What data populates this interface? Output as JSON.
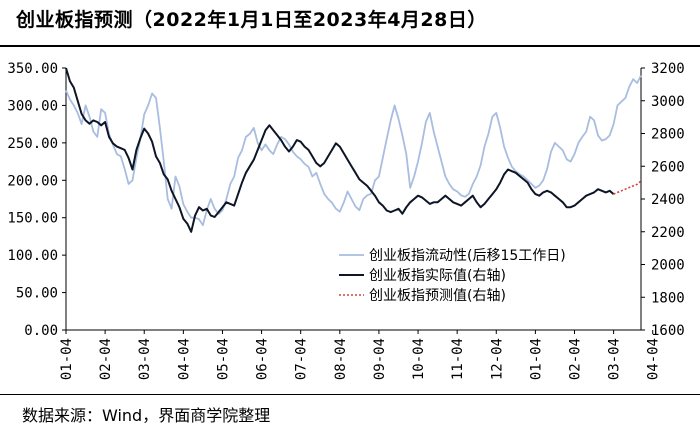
{
  "title": "创业板指预测（2022年1月1日至2023年4月28日）",
  "source": "数据来源：Wind，界面商学院整理",
  "chart_data": {
    "type": "line",
    "x_tick_labels": [
      "01-04",
      "02-04",
      "03-04",
      "04-04",
      "05-04",
      "06-04",
      "07-04",
      "08-04",
      "09-04",
      "10-04",
      "11-04",
      "12-04",
      "01-04",
      "02-04",
      "03-04",
      "04-04"
    ],
    "y_left": {
      "range": [
        0,
        350
      ],
      "ticks": [
        "0.00",
        "50.00",
        "100.00",
        "150.00",
        "200.00",
        "250.00",
        "300.00",
        "350.00"
      ]
    },
    "y_right": {
      "range": [
        1600,
        3200
      ],
      "ticks": [
        "1600",
        "1800",
        "2000",
        "2200",
        "2400",
        "2600",
        "2800",
        "3000",
        "3200"
      ]
    },
    "grid": false,
    "legend_position": "center-right",
    "series": [
      {
        "name": "创业板指流动性(后移15工作日)",
        "axis": "left",
        "color": "#a8bde0",
        "style": "solid",
        "points": [
          [
            0,
            320
          ],
          [
            0.2,
            308
          ],
          [
            0.4,
            300
          ],
          [
            0.6,
            290
          ],
          [
            0.8,
            275
          ],
          [
            1.0,
            300
          ],
          [
            1.2,
            285
          ],
          [
            1.4,
            265
          ],
          [
            1.6,
            258
          ],
          [
            1.8,
            295
          ],
          [
            2.0,
            290
          ],
          [
            2.2,
            262
          ],
          [
            2.4,
            248
          ],
          [
            2.6,
            235
          ],
          [
            2.8,
            232
          ],
          [
            3.0,
            215
          ],
          [
            3.2,
            195
          ],
          [
            3.4,
            200
          ],
          [
            3.6,
            230
          ],
          [
            3.8,
            255
          ],
          [
            4.0,
            288
          ],
          [
            4.2,
            300
          ],
          [
            4.4,
            316
          ],
          [
            4.6,
            310
          ],
          [
            4.8,
            270
          ],
          [
            5.0,
            225
          ],
          [
            5.2,
            175
          ],
          [
            5.4,
            162
          ],
          [
            5.6,
            205
          ],
          [
            5.8,
            192
          ],
          [
            6.0,
            168
          ],
          [
            6.2,
            158
          ],
          [
            6.4,
            150
          ],
          [
            6.6,
            150
          ],
          [
            6.8,
            148
          ],
          [
            7.0,
            140
          ],
          [
            7.2,
            160
          ],
          [
            7.4,
            175
          ],
          [
            7.6,
            162
          ],
          [
            7.8,
            155
          ],
          [
            8.0,
            160
          ],
          [
            8.2,
            175
          ],
          [
            8.4,
            195
          ],
          [
            8.6,
            205
          ],
          [
            8.8,
            230
          ],
          [
            9.0,
            240
          ],
          [
            9.2,
            258
          ],
          [
            9.4,
            262
          ],
          [
            9.6,
            270
          ],
          [
            9.8,
            250
          ],
          [
            10.0,
            240
          ],
          [
            10.2,
            248
          ],
          [
            10.4,
            240
          ],
          [
            10.6,
            235
          ],
          [
            10.8,
            248
          ],
          [
            11.0,
            258
          ],
          [
            11.2,
            255
          ],
          [
            11.4,
            248
          ],
          [
            11.6,
            238
          ],
          [
            11.8,
            232
          ],
          [
            12.0,
            228
          ],
          [
            12.2,
            222
          ],
          [
            12.4,
            218
          ],
          [
            12.6,
            205
          ],
          [
            12.8,
            210
          ],
          [
            13.0,
            195
          ],
          [
            13.2,
            182
          ],
          [
            13.4,
            175
          ],
          [
            13.6,
            170
          ],
          [
            13.8,
            162
          ],
          [
            14.0,
            158
          ],
          [
            14.2,
            170
          ],
          [
            14.4,
            185
          ],
          [
            14.6,
            175
          ],
          [
            14.8,
            165
          ],
          [
            15.0,
            160
          ],
          [
            15.2,
            175
          ],
          [
            15.4,
            180
          ],
          [
            15.6,
            182
          ],
          [
            15.8,
            200
          ],
          [
            16.0,
            205
          ],
          [
            16.2,
            230
          ],
          [
            16.4,
            255
          ],
          [
            16.6,
            280
          ],
          [
            16.8,
            300
          ],
          [
            17.0,
            282
          ],
          [
            17.2,
            260
          ],
          [
            17.4,
            235
          ],
          [
            17.6,
            190
          ],
          [
            17.8,
            205
          ],
          [
            18.0,
            225
          ],
          [
            18.2,
            250
          ],
          [
            18.4,
            278
          ],
          [
            18.6,
            290
          ],
          [
            18.8,
            265
          ],
          [
            19.0,
            245
          ],
          [
            19.2,
            225
          ],
          [
            19.4,
            205
          ],
          [
            19.6,
            195
          ],
          [
            19.8,
            188
          ],
          [
            20.0,
            185
          ],
          [
            20.2,
            180
          ],
          [
            20.4,
            178
          ],
          [
            20.6,
            182
          ],
          [
            20.8,
            195
          ],
          [
            21.0,
            205
          ],
          [
            21.2,
            220
          ],
          [
            21.4,
            245
          ],
          [
            21.6,
            262
          ],
          [
            21.8,
            285
          ],
          [
            22.0,
            290
          ],
          [
            22.2,
            270
          ],
          [
            22.4,
            245
          ],
          [
            22.6,
            230
          ],
          [
            22.8,
            218
          ],
          [
            23.0,
            212
          ],
          [
            23.2,
            208
          ],
          [
            23.4,
            205
          ],
          [
            23.6,
            200
          ],
          [
            23.8,
            195
          ],
          [
            24.0,
            190
          ],
          [
            24.2,
            193
          ],
          [
            24.4,
            200
          ],
          [
            24.6,
            215
          ],
          [
            24.8,
            238
          ],
          [
            25.0,
            250
          ],
          [
            25.2,
            245
          ],
          [
            25.4,
            240
          ],
          [
            25.6,
            228
          ],
          [
            25.8,
            225
          ],
          [
            26.0,
            235
          ],
          [
            26.2,
            250
          ],
          [
            26.4,
            258
          ],
          [
            26.6,
            265
          ],
          [
            26.8,
            285
          ],
          [
            27.0,
            280
          ],
          [
            27.2,
            260
          ],
          [
            27.4,
            253
          ],
          [
            27.6,
            255
          ],
          [
            27.8,
            260
          ],
          [
            28.0,
            275
          ],
          [
            28.2,
            300
          ],
          [
            28.4,
            305
          ],
          [
            28.6,
            310
          ],
          [
            28.8,
            325
          ],
          [
            29.0,
            335
          ],
          [
            29.2,
            330
          ],
          [
            29.4,
            340
          ]
        ]
      },
      {
        "name": "创业板指实际值(右轴)",
        "axis": "right",
        "color": "#0d1526",
        "style": "solid",
        "points": [
          [
            0,
            3200
          ],
          [
            0.2,
            3120
          ],
          [
            0.4,
            3080
          ],
          [
            0.6,
            3000
          ],
          [
            0.8,
            2920
          ],
          [
            1.0,
            2880
          ],
          [
            1.2,
            2860
          ],
          [
            1.4,
            2880
          ],
          [
            1.6,
            2870
          ],
          [
            1.8,
            2850
          ],
          [
            2.0,
            2870
          ],
          [
            2.2,
            2780
          ],
          [
            2.4,
            2740
          ],
          [
            2.6,
            2720
          ],
          [
            2.8,
            2710
          ],
          [
            3.0,
            2700
          ],
          [
            3.2,
            2650
          ],
          [
            3.4,
            2580
          ],
          [
            3.6,
            2700
          ],
          [
            3.8,
            2770
          ],
          [
            4.0,
            2830
          ],
          [
            4.2,
            2800
          ],
          [
            4.4,
            2750
          ],
          [
            4.6,
            2660
          ],
          [
            4.8,
            2620
          ],
          [
            5.0,
            2550
          ],
          [
            5.2,
            2520
          ],
          [
            5.4,
            2450
          ],
          [
            5.6,
            2400
          ],
          [
            5.8,
            2350
          ],
          [
            6.0,
            2280
          ],
          [
            6.2,
            2250
          ],
          [
            6.4,
            2200
          ],
          [
            6.6,
            2300
          ],
          [
            6.8,
            2350
          ],
          [
            7.0,
            2330
          ],
          [
            7.2,
            2340
          ],
          [
            7.4,
            2300
          ],
          [
            7.6,
            2290
          ],
          [
            7.8,
            2320
          ],
          [
            8.0,
            2350
          ],
          [
            8.2,
            2380
          ],
          [
            8.4,
            2370
          ],
          [
            8.6,
            2360
          ],
          [
            8.8,
            2430
          ],
          [
            9.0,
            2500
          ],
          [
            9.2,
            2560
          ],
          [
            9.4,
            2600
          ],
          [
            9.6,
            2640
          ],
          [
            9.8,
            2700
          ],
          [
            10.0,
            2760
          ],
          [
            10.2,
            2820
          ],
          [
            10.4,
            2850
          ],
          [
            10.6,
            2820
          ],
          [
            10.8,
            2790
          ],
          [
            11.0,
            2760
          ],
          [
            11.2,
            2720
          ],
          [
            11.4,
            2690
          ],
          [
            11.6,
            2720
          ],
          [
            11.8,
            2760
          ],
          [
            12.0,
            2750
          ],
          [
            12.2,
            2720
          ],
          [
            12.4,
            2700
          ],
          [
            12.6,
            2660
          ],
          [
            12.8,
            2620
          ],
          [
            13.0,
            2600
          ],
          [
            13.2,
            2620
          ],
          [
            13.4,
            2660
          ],
          [
            13.6,
            2700
          ],
          [
            13.8,
            2740
          ],
          [
            14.0,
            2720
          ],
          [
            14.2,
            2680
          ],
          [
            14.4,
            2640
          ],
          [
            14.6,
            2600
          ],
          [
            14.8,
            2560
          ],
          [
            15.0,
            2520
          ],
          [
            15.2,
            2500
          ],
          [
            15.4,
            2480
          ],
          [
            15.6,
            2450
          ],
          [
            15.8,
            2420
          ],
          [
            16.0,
            2380
          ],
          [
            16.2,
            2360
          ],
          [
            16.4,
            2330
          ],
          [
            16.6,
            2320
          ],
          [
            16.8,
            2330
          ],
          [
            17.0,
            2340
          ],
          [
            17.2,
            2310
          ],
          [
            17.4,
            2350
          ],
          [
            17.6,
            2380
          ],
          [
            17.8,
            2400
          ],
          [
            18.0,
            2420
          ],
          [
            18.2,
            2410
          ],
          [
            18.4,
            2390
          ],
          [
            18.6,
            2370
          ],
          [
            18.8,
            2380
          ],
          [
            19.0,
            2380
          ],
          [
            19.2,
            2400
          ],
          [
            19.4,
            2420
          ],
          [
            19.6,
            2400
          ],
          [
            19.8,
            2380
          ],
          [
            20.0,
            2370
          ],
          [
            20.2,
            2360
          ],
          [
            20.4,
            2380
          ],
          [
            20.6,
            2400
          ],
          [
            20.8,
            2420
          ],
          [
            21.0,
            2380
          ],
          [
            21.2,
            2350
          ],
          [
            21.4,
            2370
          ],
          [
            21.6,
            2400
          ],
          [
            21.8,
            2430
          ],
          [
            22.0,
            2460
          ],
          [
            22.2,
            2500
          ],
          [
            22.4,
            2550
          ],
          [
            22.6,
            2580
          ],
          [
            22.8,
            2570
          ],
          [
            23.0,
            2560
          ],
          [
            23.2,
            2540
          ],
          [
            23.4,
            2520
          ],
          [
            23.6,
            2500
          ],
          [
            23.8,
            2460
          ],
          [
            24.0,
            2430
          ],
          [
            24.2,
            2420
          ],
          [
            24.4,
            2440
          ],
          [
            24.6,
            2450
          ],
          [
            24.8,
            2440
          ],
          [
            25.0,
            2420
          ],
          [
            25.2,
            2400
          ],
          [
            25.4,
            2380
          ],
          [
            25.6,
            2350
          ],
          [
            25.8,
            2350
          ],
          [
            26.0,
            2360
          ],
          [
            26.2,
            2380
          ],
          [
            26.4,
            2400
          ],
          [
            26.6,
            2420
          ],
          [
            26.8,
            2430
          ],
          [
            27.0,
            2440
          ],
          [
            27.2,
            2460
          ],
          [
            27.4,
            2450
          ],
          [
            27.6,
            2440
          ],
          [
            27.8,
            2450
          ],
          [
            28.0,
            2430
          ]
        ]
      },
      {
        "name": "创业板指预测值(右轴)",
        "axis": "right",
        "color": "#d9413a",
        "style": "dotted",
        "points": [
          [
            28.0,
            2430
          ],
          [
            28.4,
            2450
          ],
          [
            28.8,
            2470
          ],
          [
            29.2,
            2490
          ],
          [
            29.4,
            2510
          ]
        ]
      }
    ]
  }
}
